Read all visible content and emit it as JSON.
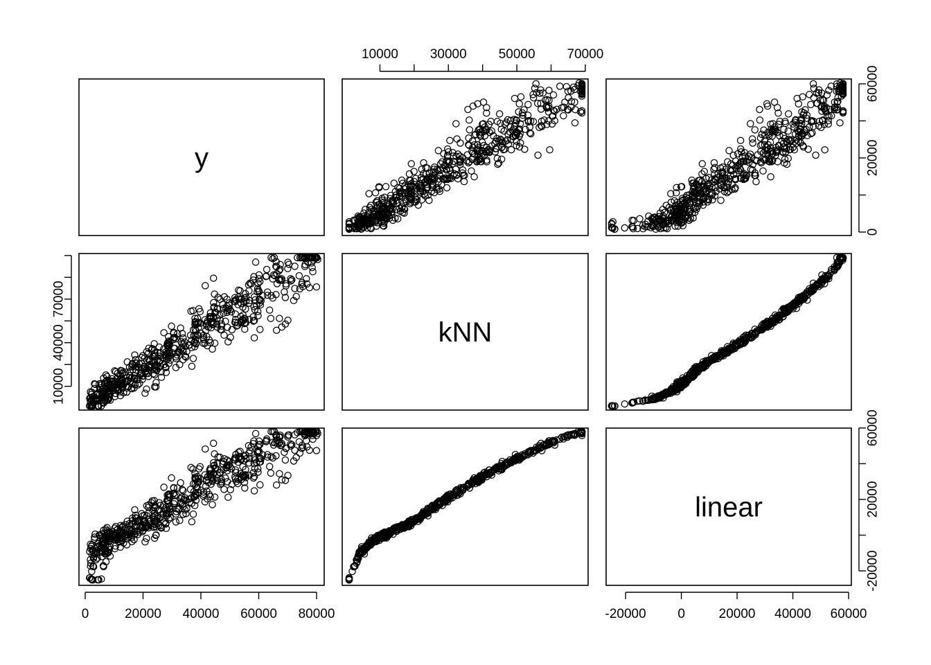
{
  "chart_data": {
    "type": "scatter",
    "variables": [
      "y",
      "kNN",
      "linear"
    ],
    "ranges": {
      "y": [
        0,
        80000
      ],
      "kNN": [
        1000,
        69000
      ],
      "linear": [
        -25000,
        58000
      ]
    },
    "ticks": {
      "y": [
        0,
        20000,
        40000,
        60000,
        80000
      ],
      "kNN": [
        10000,
        20000,
        30000,
        40000,
        50000,
        60000,
        70000
      ],
      "linear": [
        -20000,
        0,
        20000,
        40000,
        60000
      ]
    },
    "tick_labels": {
      "y": [
        "0",
        "20000",
        "40000",
        "60000",
        "80000"
      ],
      "kNN": [
        "10000",
        "",
        "30000",
        "",
        "50000",
        "",
        "70000"
      ],
      "linear_bottom": [
        "-20000",
        "0",
        "20000",
        "40000",
        "60000"
      ],
      "y_right": [
        "0",
        "",
        "20000",
        "",
        "60000"
      ],
      "kNN_left": [
        "10000",
        "",
        "40000",
        "",
        "70000"
      ],
      "linear_right": [
        "-20000",
        "",
        "20000",
        "",
        "60000"
      ]
    },
    "grid": false,
    "legend": "none",
    "point_count": 600,
    "points": []
  }
}
